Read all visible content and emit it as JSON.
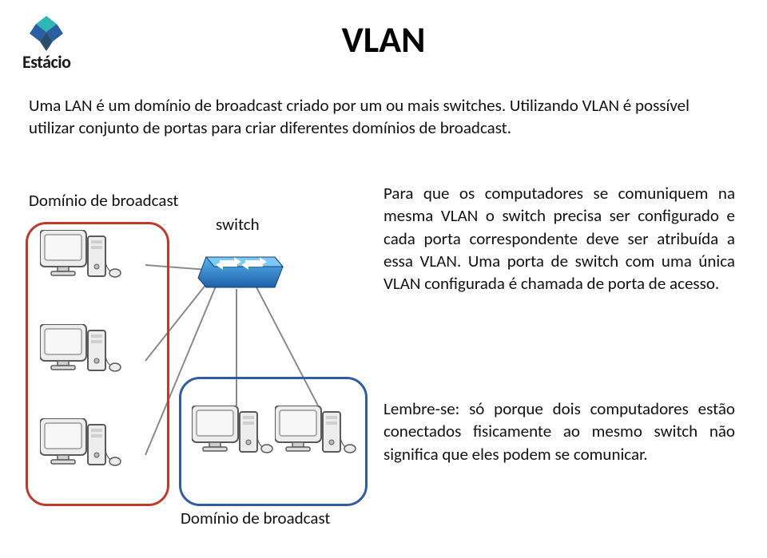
{
  "logo": {
    "text": "Estácio",
    "colors": {
      "teal": "#2fb7b3",
      "blue": "#2a5fa5",
      "dark": "#2a4d6b"
    }
  },
  "title": "VLAN",
  "intro": "Uma LAN é um domínio de broadcast criado por um ou mais switches. Utilizando VLAN é possível utilizar conjunto de portas para criar diferentes domínios de broadcast.",
  "diagram": {
    "domain_label": "Domínio de broadcast",
    "switch_label": "switch",
    "red_border": "#c0392b",
    "blue_border": "#2e5da3",
    "switch_color_top": "#3fa0e6",
    "switch_color_bottom": "#1f5fa8",
    "pc_fill": "#ededed",
    "pc_stroke": "#5a5a5a",
    "link_color": "#8a8a8a"
  },
  "paragraph1": "Para que os computadores se comuniquem na mesma VLAN o switch precisa ser configurado e cada porta correspondente deve ser atribuída a essa VLAN. Uma porta de switch com uma única VLAN configurada é chamada de porta de acesso.",
  "paragraph2": "Lembre-se: só porque dois computadores estão conectados fisicamente ao mesmo switch não significa que eles podem se comunicar."
}
